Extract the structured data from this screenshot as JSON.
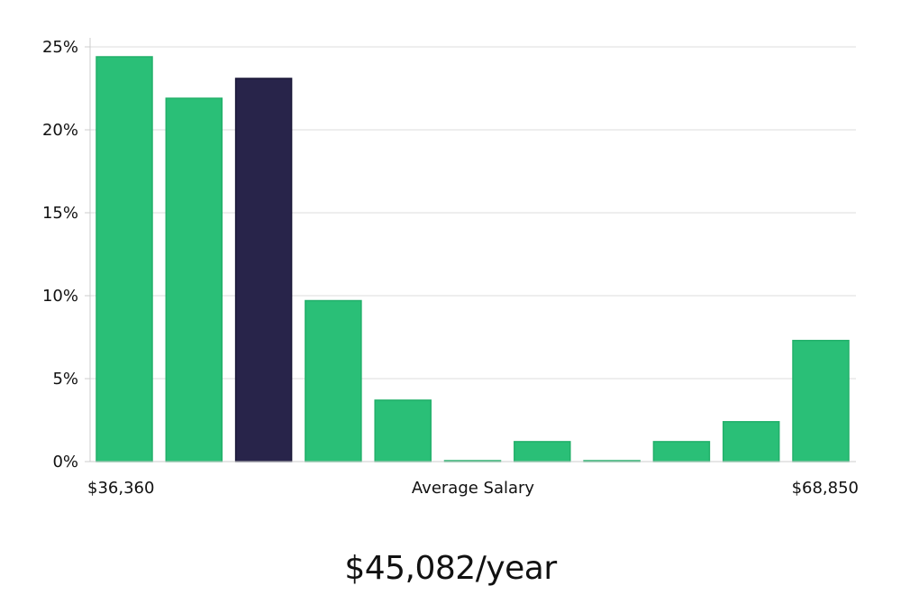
{
  "headline": "$45,082/year",
  "chart_data": {
    "type": "bar",
    "title": "",
    "xlabel": "Average Salary",
    "ylabel": "",
    "x_range_labels": {
      "min": "$36,360",
      "max": "$68,850"
    },
    "ylim": [
      0,
      25.5
    ],
    "yticks": [
      0,
      5,
      10,
      15,
      20,
      25
    ],
    "ytick_labels": [
      "0%",
      "5%",
      "10%",
      "15%",
      "20%",
      "25%"
    ],
    "grid": true,
    "values": [
      24.4,
      21.9,
      23.1,
      9.7,
      3.7,
      0.05,
      1.2,
      0.05,
      1.2,
      2.4,
      7.3
    ],
    "highlight_index": 2,
    "colors": {
      "bar": "#2abf77",
      "bar_edge": "#22b06a",
      "highlight": "#28244a",
      "highlight_edge": "#1b1838",
      "grid": "#dddddd",
      "axis": "#cccccc"
    }
  }
}
